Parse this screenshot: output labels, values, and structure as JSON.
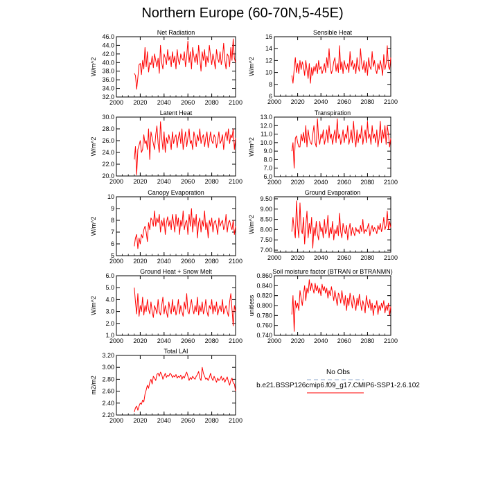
{
  "page": {
    "title": "Northern Europe (60-70N,5-45E)"
  },
  "legend": {
    "items": [
      {
        "label": "No Obs",
        "color": "#8fa8cc",
        "dash": "dash"
      },
      {
        "label": "b.e21.BSSP126cmip6.f09_g17.CMIP6-SSP1-2.6.102",
        "color": "#ff0000",
        "dash": "solid"
      }
    ]
  },
  "chart_data": [
    {
      "type": "line",
      "title": "Net Radiation",
      "ylabel": "W/m^2",
      "xlim": [
        2000,
        2100
      ],
      "ylim": [
        32,
        46
      ],
      "xticks": [
        "2000",
        "2020",
        "2040",
        "2060",
        "2080",
        "2100"
      ],
      "yticks": [
        "32.0",
        "34.0",
        "36.0",
        "38.0",
        "40.0",
        "42.0",
        "44.0",
        "46.0"
      ],
      "x0": 2015,
      "series": [
        {
          "values": [
            37.5,
            37.0,
            33.8,
            36.5,
            39.5,
            39.8,
            37.2,
            40.5,
            38.5,
            43.5,
            39.0,
            42.5,
            37.8,
            40.0,
            39.5,
            41.5,
            38.8,
            42.0,
            40.5,
            39.0,
            41.0,
            37.5,
            44.0,
            40.0,
            38.5,
            42.0,
            41.0,
            39.5,
            43.0,
            40.5,
            41.5,
            39.0,
            42.5,
            40.0,
            41.5,
            38.5,
            43.0,
            40.5,
            39.5,
            42.0,
            41.0,
            40.5,
            42.5,
            39.0,
            41.5,
            45.0,
            40.0,
            42.5,
            38.5,
            43.5,
            41.5,
            40.0,
            42.0,
            39.5,
            44.0,
            41.0,
            38.0,
            42.5,
            40.5,
            43.0,
            39.0,
            41.5,
            40.0,
            44.0,
            41.5,
            39.5,
            42.0,
            40.5,
            38.5,
            43.0,
            41.0,
            40.0,
            42.5,
            39.5,
            41.0,
            44.5,
            40.5,
            38.5,
            42.0,
            41.5,
            39.0,
            43.5,
            40.5,
            45.5,
            41.0,
            40.0
          ]
        }
      ]
    },
    {
      "type": "line",
      "title": "Sensible Heat",
      "ylabel": "W/m^2",
      "xlim": [
        2000,
        2100
      ],
      "ylim": [
        6,
        16
      ],
      "xticks": [
        "2000",
        "2020",
        "2040",
        "2060",
        "2080",
        "2100"
      ],
      "yticks": [
        "6",
        "8",
        "10",
        "12",
        "14",
        "16"
      ],
      "x0": 2015,
      "series": [
        {
          "values": [
            9.5,
            8.2,
            10.5,
            12.5,
            10.0,
            11.5,
            9.8,
            12.0,
            10.5,
            11.8,
            11.0,
            9.5,
            12.0,
            10.5,
            9.0,
            11.5,
            8.2,
            10.8,
            9.5,
            11.0,
            10.2,
            11.5,
            9.8,
            12.0,
            10.5,
            11.0,
            9.8,
            10.5,
            11.5,
            10.0,
            12.5,
            10.8,
            14.0,
            11.0,
            9.8,
            10.5,
            11.8,
            12.5,
            10.2,
            11.5,
            10.0,
            14.5,
            10.5,
            11.8,
            9.8,
            12.0,
            11.0,
            10.5,
            11.5,
            10.0,
            13.5,
            11.0,
            12.0,
            10.5,
            11.5,
            9.8,
            12.5,
            11.0,
            10.2,
            14.0,
            11.5,
            10.5,
            12.0,
            10.0,
            11.8,
            9.5,
            12.5,
            11.0,
            10.5,
            13.5,
            11.0,
            12.0,
            10.5,
            9.8,
            11.5,
            10.5,
            12.0,
            11.0,
            9.5,
            13.0,
            10.5,
            11.5,
            14.5,
            11.0,
            10.5,
            12.5
          ]
        }
      ]
    },
    {
      "type": "line",
      "title": "Latent Heat",
      "ylabel": "W/m^2",
      "xlim": [
        2000,
        2100
      ],
      "ylim": [
        20,
        30
      ],
      "xticks": [
        "2000",
        "2020",
        "2040",
        "2060",
        "2080",
        "2100"
      ],
      "yticks": [
        "20.0",
        "22.0",
        "24.0",
        "26.0",
        "28.0",
        "30.0"
      ],
      "x0": 2015,
      "series": [
        {
          "values": [
            22.8,
            25.0,
            20.2,
            24.5,
            25.2,
            26.0,
            24.0,
            24.5,
            27.0,
            25.5,
            26.0,
            24.5,
            28.0,
            22.8,
            27.5,
            26.5,
            25.5,
            24.5,
            27.0,
            28.5,
            25.5,
            24.0,
            29.2,
            26.5,
            24.5,
            27.5,
            24.0,
            26.5,
            25.5,
            27.0,
            26.0,
            24.5,
            27.5,
            25.5,
            26.5,
            27.0,
            24.8,
            26.5,
            27.5,
            25.5,
            28.0,
            24.5,
            26.0,
            27.5,
            25.0,
            26.5,
            28.0,
            25.5,
            26.0,
            24.5,
            27.5,
            26.5,
            25.0,
            27.0,
            26.0,
            28.0,
            25.5,
            26.5,
            27.0,
            25.0,
            26.5,
            27.5,
            24.8,
            26.0,
            27.5,
            26.0,
            25.5,
            27.0,
            26.5,
            24.8,
            26.0,
            27.5,
            25.5,
            26.0,
            27.0,
            24.5,
            26.5,
            27.5,
            26.0,
            28.0,
            25.5,
            27.0,
            26.5,
            28.0,
            24.5,
            26.5
          ]
        }
      ]
    },
    {
      "type": "line",
      "title": "Transpiration",
      "ylabel": "W/m^2",
      "xlim": [
        2000,
        2100
      ],
      "ylim": [
        6,
        13
      ],
      "xticks": [
        "2000",
        "2020",
        "2040",
        "2060",
        "2080",
        "2100"
      ],
      "yticks": [
        "6.0",
        "7.0",
        "8.0",
        "9.0",
        "10.0",
        "11.0",
        "12.0",
        "13.0"
      ],
      "x0": 2015,
      "series": [
        {
          "values": [
            9.0,
            10.0,
            7.0,
            10.5,
            10.8,
            10.0,
            9.5,
            9.5,
            11.0,
            10.2,
            11.2,
            10.0,
            12.0,
            9.5,
            11.5,
            10.5,
            10.0,
            9.8,
            11.0,
            12.0,
            10.0,
            9.5,
            12.8,
            10.5,
            9.8,
            11.0,
            10.5,
            11.5,
            9.8,
            10.5,
            11.5,
            10.0,
            12.0,
            10.5,
            11.0,
            9.8,
            10.8,
            11.5,
            10.0,
            12.8,
            10.5,
            11.0,
            9.8,
            10.5,
            11.5,
            10.0,
            11.0,
            10.5,
            12.0,
            9.8,
            10.5,
            11.5,
            10.0,
            12.5,
            10.5,
            9.5,
            11.5,
            10.0,
            11.0,
            10.5,
            12.0,
            9.8,
            10.8,
            11.5,
            10.0,
            12.5,
            10.5,
            11.0,
            9.8,
            12.0,
            10.5,
            11.0,
            10.0,
            11.5,
            9.5,
            10.5,
            12.5,
            10.0,
            11.5,
            10.5,
            12.0,
            9.8,
            12.0,
            11.0,
            9.5,
            10.5
          ]
        }
      ]
    },
    {
      "type": "line",
      "title": "Canopy Evaporation",
      "ylabel": "W/m^2",
      "xlim": [
        2000,
        2100
      ],
      "ylim": [
        5,
        10
      ],
      "xticks": [
        "2000",
        "2020",
        "2040",
        "2060",
        "2080",
        "2100"
      ],
      "yticks": [
        "5",
        "6",
        "7",
        "8",
        "9",
        "10"
      ],
      "x0": 2015,
      "series": [
        {
          "values": [
            5.8,
            6.5,
            6.8,
            5.6,
            6.5,
            6.0,
            6.8,
            6.5,
            7.2,
            7.5,
            7.0,
            6.2,
            7.8,
            7.2,
            8.2,
            8.0,
            7.5,
            8.8,
            7.5,
            8.2,
            7.8,
            8.5,
            7.0,
            8.0,
            7.5,
            8.2,
            6.8,
            7.8,
            8.3,
            7.5,
            8.0,
            7.2,
            8.5,
            7.8,
            7.0,
            8.5,
            7.5,
            8.2,
            6.8,
            8.0,
            7.5,
            8.8,
            7.2,
            7.8,
            8.0,
            6.8,
            8.5,
            7.5,
            9.0,
            7.0,
            8.2,
            7.5,
            8.5,
            6.5,
            7.8,
            8.2,
            7.0,
            8.0,
            7.5,
            8.8,
            7.2,
            7.8,
            6.5,
            8.0,
            7.5,
            8.2,
            7.0,
            7.8,
            8.0,
            7.5,
            6.8,
            8.2,
            7.5,
            7.8,
            8.0,
            7.2,
            7.5,
            8.5,
            7.0,
            7.8,
            8.0,
            7.5,
            7.2,
            8.0,
            6.8,
            7.5
          ]
        }
      ]
    },
    {
      "type": "line",
      "title": "Ground Evaporation",
      "ylabel": "W/m^2",
      "xlim": [
        2000,
        2100
      ],
      "ylim": [
        6.9,
        9.6
      ],
      "xticks": [
        "2000",
        "2020",
        "2040",
        "2060",
        "2080",
        "2100"
      ],
      "yticks": [
        "7.00",
        "7.50",
        "8.00",
        "8.50",
        "9.00",
        "9.50"
      ],
      "x0": 2015,
      "series": [
        {
          "values": [
            7.9,
            8.6,
            8.0,
            7.6,
            9.4,
            8.2,
            7.6,
            9.3,
            8.0,
            7.8,
            8.6,
            7.3,
            8.2,
            8.9,
            7.6,
            8.3,
            7.8,
            8.6,
            7.1,
            8.1,
            7.7,
            8.4,
            7.8,
            7.5,
            8.4,
            7.9,
            8.1,
            7.6,
            8.5,
            7.8,
            8.0,
            8.7,
            7.6,
            8.1,
            7.8,
            8.4,
            7.5,
            8.0,
            7.8,
            8.2,
            7.7,
            8.8,
            7.9,
            7.6,
            8.3,
            8.0,
            7.8,
            8.2,
            7.5,
            8.0,
            8.3,
            7.7,
            8.1,
            7.9,
            7.7,
            8.1,
            7.9,
            8.0,
            7.8,
            8.2,
            7.9,
            8.5,
            7.8,
            8.0,
            7.9,
            8.1,
            8.3,
            7.7,
            8.0,
            8.2,
            7.9,
            8.1,
            8.0,
            7.8,
            8.2,
            8.0,
            8.3,
            7.9,
            8.1,
            8.6,
            8.0,
            8.2,
            8.9,
            8.0,
            8.4,
            8.1
          ]
        }
      ]
    },
    {
      "type": "line",
      "title": "Ground Heat + Snow Melt",
      "ylabel": "W/m^2",
      "xlim": [
        2000,
        2100
      ],
      "ylim": [
        1,
        6
      ],
      "xticks": [
        "2000",
        "2020",
        "2040",
        "2060",
        "2080",
        "2100"
      ],
      "yticks": [
        "1.0",
        "2.0",
        "3.0",
        "4.0",
        "5.0",
        "6.0"
      ],
      "x0": 2015,
      "series": [
        {
          "values": [
            5.0,
            3.8,
            2.8,
            4.5,
            2.6,
            3.5,
            3.0,
            4.2,
            2.7,
            3.5,
            3.0,
            4.0,
            3.2,
            2.8,
            3.8,
            3.0,
            2.5,
            3.5,
            3.2,
            2.8,
            4.0,
            3.0,
            2.7,
            3.5,
            4.2,
            2.8,
            3.5,
            3.0,
            2.5,
            3.8,
            3.2,
            2.8,
            4.0,
            3.0,
            3.5,
            2.7,
            3.2,
            4.0,
            2.8,
            3.5,
            3.0,
            2.6,
            3.8,
            3.2,
            4.5,
            3.0,
            2.8,
            3.5,
            4.0,
            3.2,
            2.8,
            3.5,
            3.0,
            4.2,
            2.7,
            3.5,
            3.0,
            3.8,
            2.8,
            3.2,
            4.0,
            3.0,
            2.6,
            3.5,
            3.2,
            4.0,
            2.8,
            3.5,
            3.0,
            3.8,
            2.7,
            3.2,
            3.5,
            3.0,
            4.0,
            2.8,
            3.2,
            3.5,
            3.0,
            2.6,
            3.8,
            4.5,
            3.2,
            1.8,
            3.5,
            3.0
          ]
        }
      ]
    },
    {
      "type": "line",
      "title": "Soil moisture factor (BTRAN or BTRANMN)",
      "ylabel": "unitless",
      "xlim": [
        2000,
        2100
      ],
      "ylim": [
        0.74,
        0.86
      ],
      "xticks": [
        "2000",
        "2020",
        "2040",
        "2060",
        "2080",
        "2100"
      ],
      "yticks": [
        "0.740",
        "0.760",
        "0.780",
        "0.800",
        "0.820",
        "0.840",
        "0.860"
      ],
      "x0": 2015,
      "series": [
        {
          "values": [
            0.782,
            0.82,
            0.748,
            0.81,
            0.795,
            0.805,
            0.79,
            0.83,
            0.815,
            0.8,
            0.822,
            0.84,
            0.81,
            0.835,
            0.825,
            0.852,
            0.83,
            0.845,
            0.835,
            0.825,
            0.845,
            0.83,
            0.84,
            0.825,
            0.835,
            0.82,
            0.843,
            0.83,
            0.838,
            0.825,
            0.835,
            0.815,
            0.83,
            0.82,
            0.838,
            0.825,
            0.81,
            0.83,
            0.815,
            0.8,
            0.825,
            0.82,
            0.805,
            0.83,
            0.812,
            0.8,
            0.82,
            0.79,
            0.815,
            0.8,
            0.825,
            0.81,
            0.795,
            0.82,
            0.805,
            0.79,
            0.815,
            0.8,
            0.823,
            0.805,
            0.79,
            0.81,
            0.8,
            0.785,
            0.82,
            0.805,
            0.795,
            0.812,
            0.79,
            0.805,
            0.78,
            0.8,
            0.795,
            0.81,
            0.782,
            0.8,
            0.79,
            0.805,
            0.795,
            0.81,
            0.785,
            0.8,
            0.79,
            0.805,
            0.78,
            0.798
          ]
        }
      ]
    },
    {
      "type": "line",
      "title": "Total LAI",
      "ylabel": "m2/m2",
      "xlim": [
        2000,
        2100
      ],
      "ylim": [
        2.2,
        3.2
      ],
      "xticks": [
        "2000",
        "2020",
        "2040",
        "2060",
        "2080",
        "2100"
      ],
      "yticks": [
        "2.20",
        "2.40",
        "2.60",
        "2.80",
        "3.00",
        "3.20"
      ],
      "x0": 2015,
      "series": [
        {
          "values": [
            2.25,
            2.32,
            2.35,
            2.28,
            2.35,
            2.4,
            2.38,
            2.45,
            2.42,
            2.55,
            2.62,
            2.7,
            2.65,
            2.75,
            2.8,
            2.72,
            2.85,
            2.82,
            2.78,
            2.88,
            2.9,
            2.85,
            2.92,
            2.88,
            2.8,
            2.85,
            2.9,
            2.83,
            2.87,
            2.85,
            2.9,
            2.88,
            2.83,
            2.86,
            2.84,
            2.88,
            2.82,
            2.85,
            2.83,
            2.87,
            2.8,
            2.85,
            2.82,
            2.88,
            2.92,
            2.85,
            2.78,
            2.83,
            2.8,
            2.85,
            2.82,
            2.8,
            2.85,
            2.88,
            2.93,
            2.82,
            2.78,
            3.0,
            2.9,
            2.85,
            2.8,
            2.82,
            2.78,
            2.83,
            2.9,
            2.82,
            2.78,
            2.85,
            2.8,
            2.75,
            2.82,
            2.78,
            2.8,
            2.85,
            2.78,
            2.82,
            2.75,
            2.8,
            2.84,
            2.76,
            2.7,
            2.78,
            2.82,
            2.74,
            2.72,
            2.6
          ]
        }
      ]
    }
  ]
}
